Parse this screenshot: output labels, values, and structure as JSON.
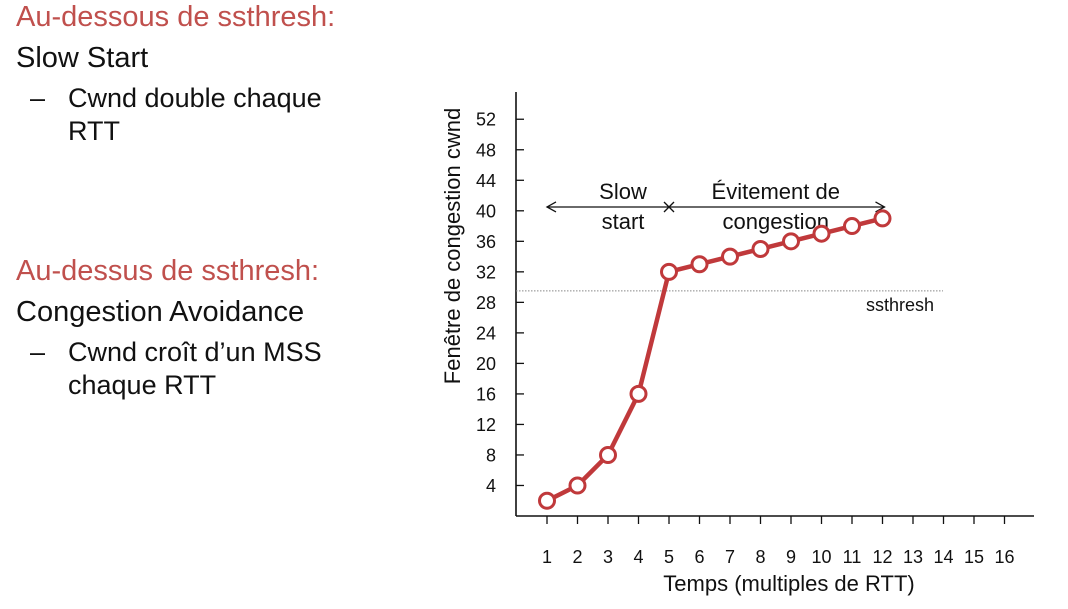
{
  "left_text": {
    "section1": {
      "title": "Au-dessous de ssthresh:",
      "subtitle": "Slow Start",
      "bullet_dash": "–",
      "bullet": "Cwnd double chaque RTT"
    },
    "section2": {
      "title": "Au-dessus de ssthresh:",
      "subtitle": "Congestion Avoidance",
      "bullet_dash": "–",
      "bullet": "Cwnd croît d’un MSS chaque RTT"
    }
  },
  "colors": {
    "accent_red": "#c0504d",
    "series_red": "#c0393b",
    "text": "#111111"
  },
  "chart_data": {
    "type": "line",
    "title": "",
    "xlabel": "Temps (multiples de RTT)",
    "ylabel": "Fenêtre de congestion cwnd",
    "x_ticks": [
      1,
      2,
      3,
      4,
      5,
      6,
      7,
      8,
      9,
      10,
      11,
      12,
      13,
      14,
      15,
      16
    ],
    "y_ticks": [
      4,
      8,
      12,
      16,
      20,
      24,
      28,
      32,
      36,
      40,
      44,
      48,
      52
    ],
    "xlim": [
      0,
      16.5
    ],
    "ylim": [
      0,
      56
    ],
    "grid": false,
    "series": [
      {
        "x": [
          1,
          2,
          3,
          4,
          5,
          6,
          7,
          8,
          9,
          10,
          11,
          12
        ],
        "values": [
          2,
          4,
          8,
          16,
          32,
          33,
          34,
          35,
          36,
          37,
          38,
          39
        ]
      }
    ],
    "threshold": {
      "label": "ssthresh",
      "y": 29.5
    },
    "phase_labels": [
      {
        "text_line1": "Slow",
        "text_line2": "start",
        "x_start": 1,
        "x_end": 5
      },
      {
        "text_line1": "Évitement de",
        "text_line2": "congestion",
        "x_start": 5,
        "x_end": 12
      }
    ],
    "phase_arrow_y": 40.5
  }
}
